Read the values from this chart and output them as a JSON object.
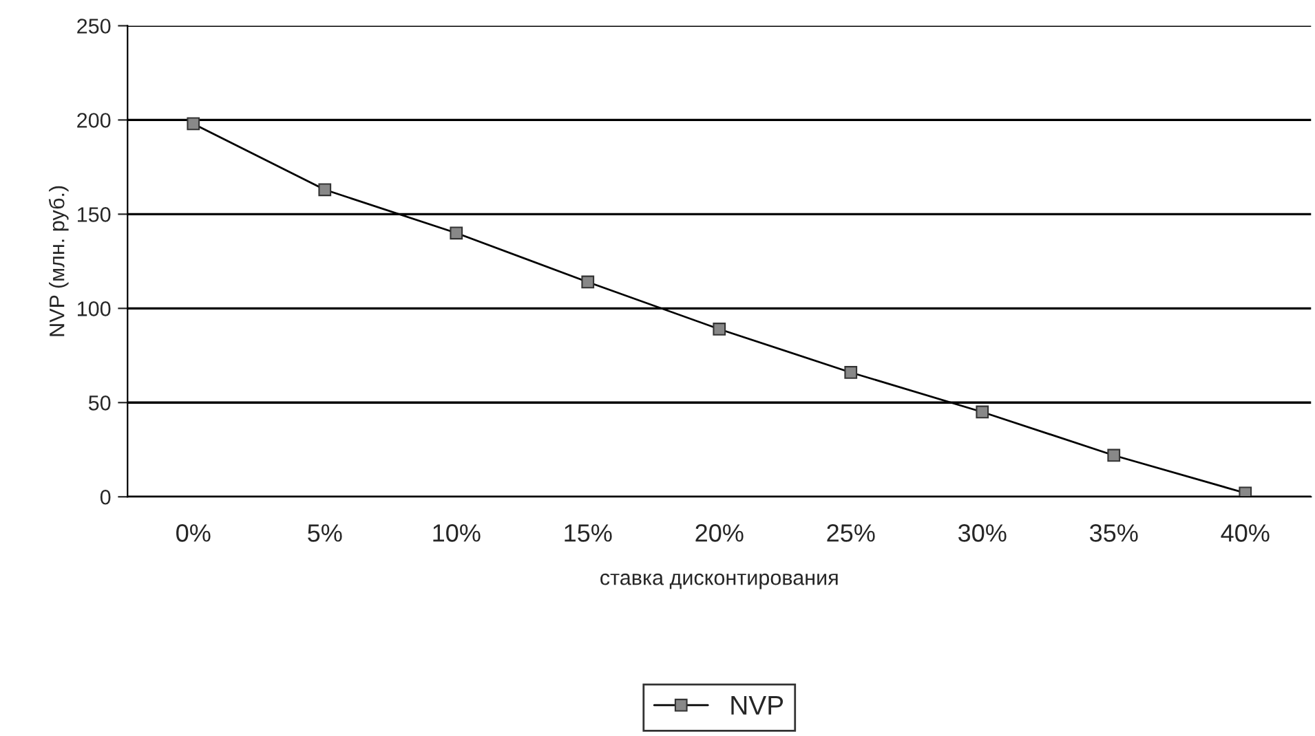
{
  "chart_data": {
    "type": "line",
    "xlabel": "ставка дисконтирования",
    "ylabel": "NVP (млн. руб.)",
    "categories": [
      "0%",
      "5%",
      "10%",
      "15%",
      "20%",
      "25%",
      "30%",
      "35%",
      "40%"
    ],
    "series": [
      {
        "name": "NVP",
        "color": "#000000",
        "values": [
          198,
          163,
          140,
          114,
          89,
          66,
          45,
          22,
          2
        ]
      }
    ],
    "ylim": [
      0,
      250
    ],
    "yticks": [
      0,
      50,
      100,
      150,
      200,
      250
    ],
    "grid": "y",
    "legend": "bottom",
    "marker": "square",
    "line_style": "solid"
  }
}
